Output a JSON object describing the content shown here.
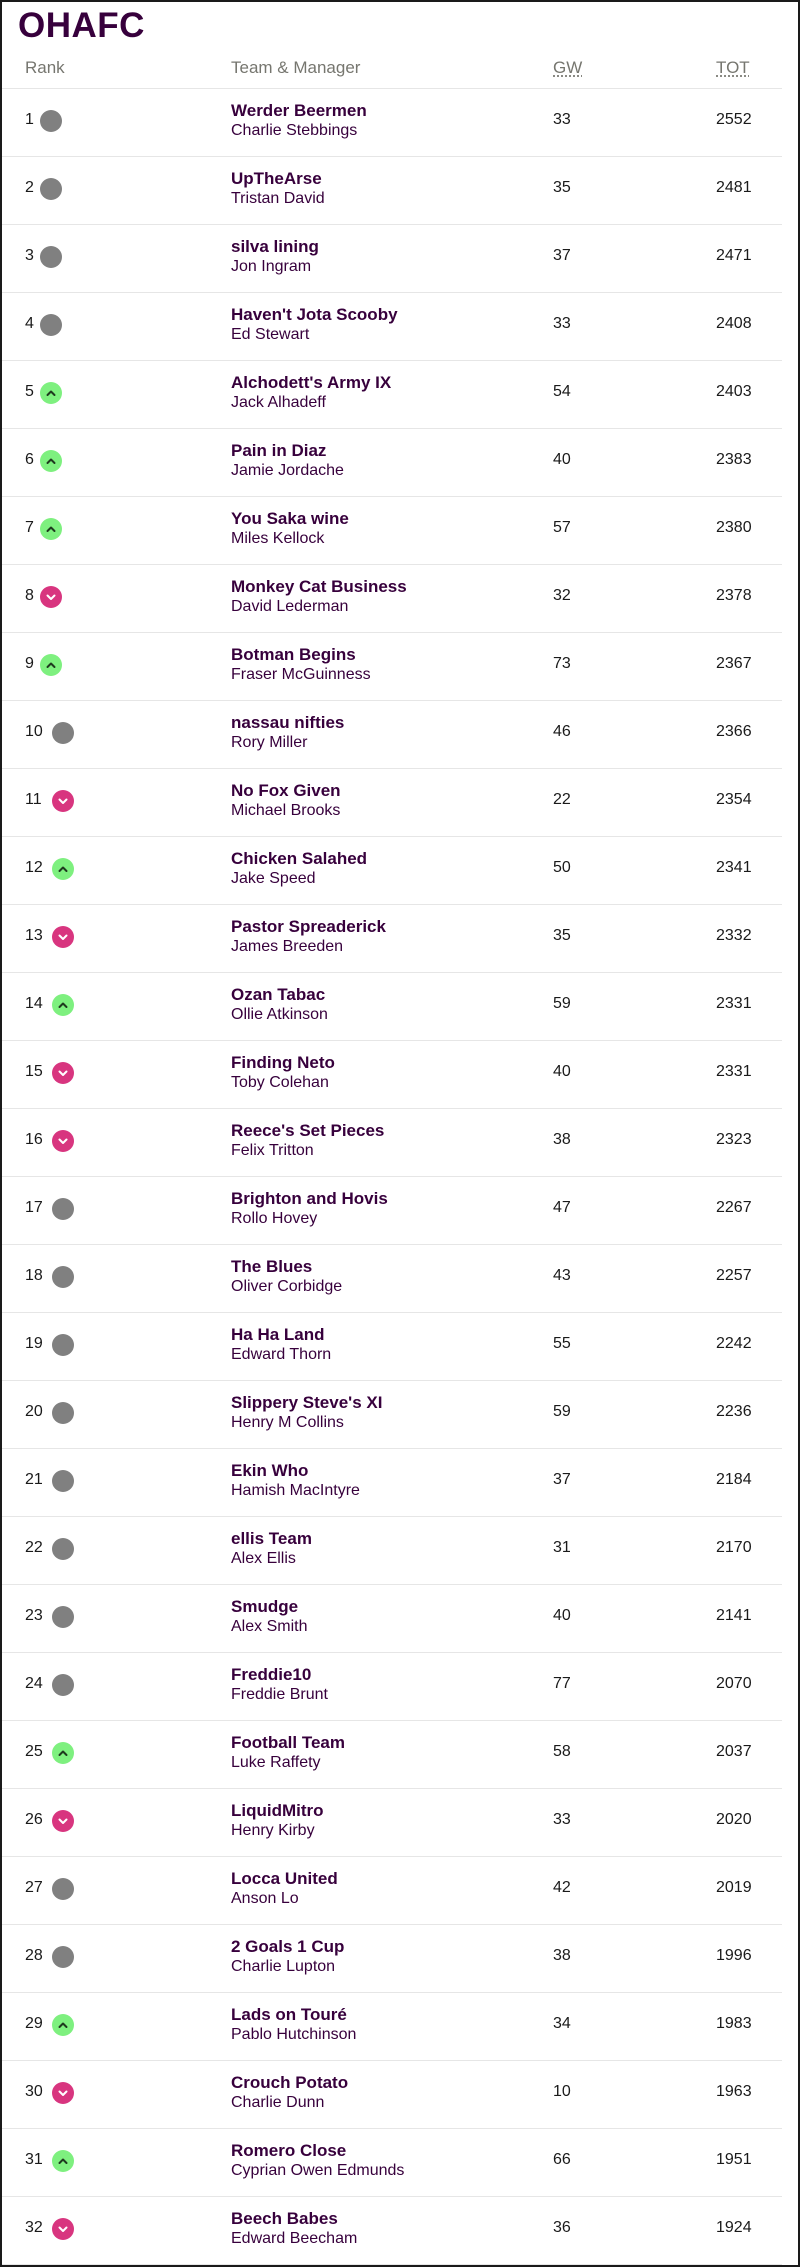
{
  "league": {
    "title": "OHAFC"
  },
  "columns": {
    "rank": "Rank",
    "team": "Team & Manager",
    "gw": "GW",
    "tot": "TOT"
  },
  "colors": {
    "up": "#7ef07f",
    "down": "#d8357f",
    "same": "#808080",
    "text": "#37003c"
  },
  "rows": [
    {
      "rank": "1",
      "movement": "same",
      "team": "Werder Beermen",
      "manager": "Charlie Stebbings",
      "gw": "33",
      "tot": "2552"
    },
    {
      "rank": "2",
      "movement": "same",
      "team": "UpTheArse",
      "manager": "Tristan David",
      "gw": "35",
      "tot": "2481"
    },
    {
      "rank": "3",
      "movement": "same",
      "team": "silva lining",
      "manager": "Jon Ingram",
      "gw": "37",
      "tot": "2471"
    },
    {
      "rank": "4",
      "movement": "same",
      "team": "Haven't Jota Scooby",
      "manager": "Ed Stewart",
      "gw": "33",
      "tot": "2408"
    },
    {
      "rank": "5",
      "movement": "up",
      "team": "Alchodett's Army IX",
      "manager": "Jack Alhadeff",
      "gw": "54",
      "tot": "2403"
    },
    {
      "rank": "6",
      "movement": "up",
      "team": "Pain in Diaz",
      "manager": "Jamie Jordache",
      "gw": "40",
      "tot": "2383"
    },
    {
      "rank": "7",
      "movement": "up",
      "team": "You Saka wine",
      "manager": "Miles Kellock",
      "gw": "57",
      "tot": "2380"
    },
    {
      "rank": "8",
      "movement": "down",
      "team": "Monkey Cat Business",
      "manager": "David Lederman",
      "gw": "32",
      "tot": "2378"
    },
    {
      "rank": "9",
      "movement": "up",
      "team": "Botman Begins",
      "manager": "Fraser McGuinness",
      "gw": "73",
      "tot": "2367"
    },
    {
      "rank": "10",
      "movement": "same",
      "team": "nassau nifties",
      "manager": "Rory Miller",
      "gw": "46",
      "tot": "2366"
    },
    {
      "rank": "11",
      "movement": "down",
      "team": "No Fox Given",
      "manager": "Michael Brooks",
      "gw": "22",
      "tot": "2354"
    },
    {
      "rank": "12",
      "movement": "up",
      "team": "Chicken Salahed",
      "manager": "Jake Speed",
      "gw": "50",
      "tot": "2341"
    },
    {
      "rank": "13",
      "movement": "down",
      "team": "Pastor Spreaderick",
      "manager": "James Breeden",
      "gw": "35",
      "tot": "2332"
    },
    {
      "rank": "14",
      "movement": "up",
      "team": "Ozan Tabac",
      "manager": "Ollie Atkinson",
      "gw": "59",
      "tot": "2331"
    },
    {
      "rank": "15",
      "movement": "down",
      "team": "Finding Neto",
      "manager": "Toby Colehan",
      "gw": "40",
      "tot": "2331"
    },
    {
      "rank": "16",
      "movement": "down",
      "team": "Reece's Set Pieces",
      "manager": "Felix Tritton",
      "gw": "38",
      "tot": "2323"
    },
    {
      "rank": "17",
      "movement": "same",
      "team": "Brighton and Hovis",
      "manager": "Rollo Hovey",
      "gw": "47",
      "tot": "2267"
    },
    {
      "rank": "18",
      "movement": "same",
      "team": "The Blues",
      "manager": "Oliver Corbidge",
      "gw": "43",
      "tot": "2257"
    },
    {
      "rank": "19",
      "movement": "same",
      "team": "Ha Ha Land",
      "manager": "Edward Thorn",
      "gw": "55",
      "tot": "2242"
    },
    {
      "rank": "20",
      "movement": "same",
      "team": "Slippery Steve's XI",
      "manager": "Henry M Collins",
      "gw": "59",
      "tot": "2236"
    },
    {
      "rank": "21",
      "movement": "same",
      "team": "Ekin Who",
      "manager": "Hamish MacIntyre",
      "gw": "37",
      "tot": "2184"
    },
    {
      "rank": "22",
      "movement": "same",
      "team": "ellis Team",
      "manager": "Alex Ellis",
      "gw": "31",
      "tot": "2170"
    },
    {
      "rank": "23",
      "movement": "same",
      "team": "Smudge",
      "manager": "Alex Smith",
      "gw": "40",
      "tot": "2141"
    },
    {
      "rank": "24",
      "movement": "same",
      "team": "Freddie10",
      "manager": "Freddie Brunt",
      "gw": "77",
      "tot": "2070"
    },
    {
      "rank": "25",
      "movement": "up",
      "team": "Football Team",
      "manager": "Luke Raffety",
      "gw": "58",
      "tot": "2037"
    },
    {
      "rank": "26",
      "movement": "down",
      "team": "LiquidMitro",
      "manager": "Henry Kirby",
      "gw": "33",
      "tot": "2020"
    },
    {
      "rank": "27",
      "movement": "same",
      "team": "Locca United",
      "manager": "Anson Lo",
      "gw": "42",
      "tot": "2019"
    },
    {
      "rank": "28",
      "movement": "same",
      "team": "2 Goals 1 Cup",
      "manager": "Charlie Lupton",
      "gw": "38",
      "tot": "1996"
    },
    {
      "rank": "29",
      "movement": "up",
      "team": "Lads on Touré",
      "manager": "Pablo Hutchinson",
      "gw": "34",
      "tot": "1983"
    },
    {
      "rank": "30",
      "movement": "down",
      "team": "Crouch Potato",
      "manager": "Charlie Dunn",
      "gw": "10",
      "tot": "1963"
    },
    {
      "rank": "31",
      "movement": "up",
      "team": "Romero Close",
      "manager": "Cyprian Owen Edmunds",
      "gw": "66",
      "tot": "1951"
    },
    {
      "rank": "32",
      "movement": "down",
      "team": "Beech Babes",
      "manager": "Edward Beecham",
      "gw": "36",
      "tot": "1924"
    }
  ]
}
